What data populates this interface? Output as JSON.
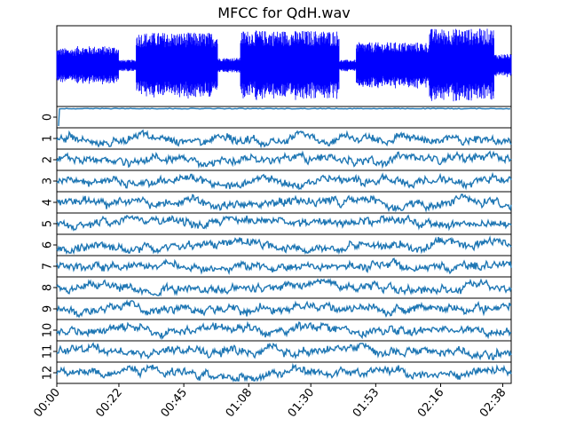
{
  "chart_data": {
    "type": "line",
    "title": "MFCC for QdH.wav",
    "x_tick_labels": [
      "00:00",
      "00:22",
      "00:45",
      "01:08",
      "01:30",
      "01:53",
      "02:16",
      "02:38"
    ],
    "x_tick_seconds": [
      0,
      22,
      45,
      68,
      90,
      113,
      136,
      158
    ],
    "x_range_seconds": [
      0,
      161
    ],
    "grid": false,
    "legend": "none",
    "panels": [
      {
        "name": "waveform",
        "color": "#0000ff",
        "description_segments": [
          {
            "from": 0,
            "to": 7,
            "amplitude": 0.45
          },
          {
            "from": 7,
            "to": 22,
            "amplitude": 0.5
          },
          {
            "from": 22,
            "to": 28,
            "amplitude": 0.15
          },
          {
            "from": 28,
            "to": 57,
            "amplitude": 0.85
          },
          {
            "from": 57,
            "to": 65,
            "amplitude": 0.2
          },
          {
            "from": 65,
            "to": 100,
            "amplitude": 0.9
          },
          {
            "from": 100,
            "to": 106,
            "amplitude": 0.15
          },
          {
            "from": 106,
            "to": 132,
            "amplitude": 0.6
          },
          {
            "from": 132,
            "to": 155,
            "amplitude": 0.95
          },
          {
            "from": 155,
            "to": 161,
            "amplitude": 0.3
          }
        ]
      }
    ],
    "mfcc_series": [
      {
        "label": "0",
        "color": "#1f77b4"
      },
      {
        "label": "1",
        "color": "#1f77b4"
      },
      {
        "label": "2",
        "color": "#1f77b4"
      },
      {
        "label": "3",
        "color": "#1f77b4"
      },
      {
        "label": "4",
        "color": "#1f77b4"
      },
      {
        "label": "5",
        "color": "#1f77b4"
      },
      {
        "label": "6",
        "color": "#1f77b4"
      },
      {
        "label": "7",
        "color": "#1f77b4"
      },
      {
        "label": "8",
        "color": "#1f77b4"
      },
      {
        "label": "9",
        "color": "#1f77b4"
      },
      {
        "label": "10",
        "color": "#1f77b4"
      },
      {
        "label": "11",
        "color": "#1f77b4"
      },
      {
        "label": "12",
        "color": "#1f77b4"
      }
    ]
  }
}
